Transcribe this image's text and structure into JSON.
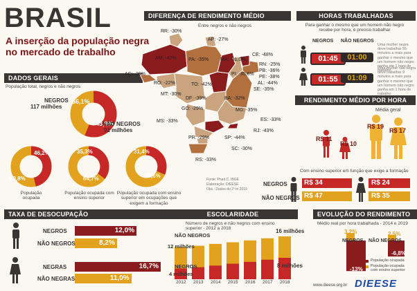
{
  "title": {
    "main": "BRASIL",
    "subtitle_line1": "A inserção da população negra",
    "subtitle_line2": "no mercado de trabalho"
  },
  "colors": {
    "dark_red": "#7a1416",
    "red": "#c62828",
    "orange": "#e8691e",
    "gold": "#e2a21e",
    "dark": "#3a3433",
    "tan": "#b79777",
    "cream": "#fbf8f1"
  },
  "dados_gerais": {
    "header": "DADOS GERAIS",
    "caption": "População total, negros e não negros",
    "negros_label": "NEGROS",
    "negros_pct": "56,1%",
    "negros_count": "117 milhões",
    "nao_negros_label": "NÃO NEGROS",
    "nao_negros_pct": "43,9%",
    "nao_negros_count": "92 milhões",
    "donuts": [
      {
        "inner": "46,2%",
        "outer": "53,8%",
        "value": 0.462,
        "caption": "População ocupada"
      },
      {
        "inner": "35,3%",
        "outer": "64,7%",
        "value": 0.353,
        "caption": "População ocupada com ensino superior"
      },
      {
        "inner": "31,4%",
        "outer": "68,6%",
        "value": 0.314,
        "caption": "População ocupada com ensino superior em ocupações que exigem a formação"
      }
    ],
    "main_value": 0.561
  },
  "mapa": {
    "header": "DIFERENÇA DE RENDIMENTO MÉDIO",
    "caption": "Entre negros e não negros",
    "states": [
      {
        "uf": "RR",
        "value": "-30%"
      },
      {
        "uf": "AP",
        "value": "-27%"
      },
      {
        "uf": "AM",
        "value": "-42%"
      },
      {
        "uf": "PA",
        "value": "-35%"
      },
      {
        "uf": "MA",
        "value": "-31,0%"
      },
      {
        "uf": "CE",
        "value": "-48%"
      },
      {
        "uf": "RN",
        "value": "-25%"
      },
      {
        "uf": "PB",
        "value": "-36%"
      },
      {
        "uf": "PE",
        "value": "-38%"
      },
      {
        "uf": "AL",
        "value": "-44%"
      },
      {
        "uf": "SE",
        "value": "-35%"
      },
      {
        "uf": "PI",
        "value": "-35,6%"
      },
      {
        "uf": "AC",
        "value": "-30%"
      },
      {
        "uf": "RO",
        "value": "-22%"
      },
      {
        "uf": "TO",
        "value": "-42%"
      },
      {
        "uf": "MT",
        "value": "-30%"
      },
      {
        "uf": "DF",
        "value": "-39%"
      },
      {
        "uf": "BA",
        "value": "-32%"
      },
      {
        "uf": "GO",
        "value": "-29%"
      },
      {
        "uf": "MG",
        "value": "-35%"
      },
      {
        "uf": "MS",
        "value": "-33%"
      },
      {
        "uf": "ES",
        "value": "-33%"
      },
      {
        "uf": "RJ",
        "value": "-43%"
      },
      {
        "uf": "SP",
        "value": "-44%"
      },
      {
        "uf": "PR",
        "value": "-29%"
      },
      {
        "uf": "SC",
        "value": "-30%"
      },
      {
        "uf": "RS",
        "value": "-33%"
      }
    ],
    "source": [
      "Fonte: Pnad C. IBGE",
      "Elaboração: DIEESE",
      "Obs.: Dados do 2º tri 2019"
    ]
  },
  "horas": {
    "header": "HORAS TRABALHADAS",
    "caption": "Para ganhar o mesmo que um homem não negro recebe por hora, é preciso trabalhar",
    "negros_label": "NEGROS",
    "nao_negros_label": "NÃO NEGROS",
    "homem_negro": "01:45",
    "homem_nao_negro": "01:00",
    "mulher_negra": "01:55",
    "mulher_nao_negra": "01:09",
    "note1": "Uma mulher negra deve trabalhar 55 minutos a mais para ganhar o mesmo que um homem não negro ganha em 1 hora de trabalho",
    "note2": "Uma mulher não negra deve trabalhar 9 minutos a mais para ganhar o mesmo que um homem não negro ganha em 1 hora de trabalho"
  },
  "rendimento_hora": {
    "header": "RENDIMENTO MÉDIO POR HORA",
    "media_geral": "Média geral",
    "homem_negro": "R$ 11",
    "mulher_negra": "R$ 10",
    "homem_nao_negro": "R$ 19",
    "mulher_nao_negra": "R$ 17",
    "superior_caption": "Com ensino superior em função que exige a formação",
    "negros_label": "NEGROS",
    "nao_negros_label": "NÃO NEGROS",
    "sup_homem_negro": "R$ 34",
    "sup_mulher_negra": "R$ 24",
    "sup_homem_nao_negro": "R$ 47",
    "sup_mulher_nao_negra": "R$ 35"
  },
  "desocupacao": {
    "header": "TAXA DE DESOCUPAÇÃO",
    "rows": [
      {
        "label": "NEGROS",
        "value": "12,0%",
        "num": 12.0
      },
      {
        "label": "NÃO NEGROS",
        "value": "8,2%",
        "num": 8.2
      },
      {
        "label": "NEGRAS",
        "value": "16,7%",
        "num": 16.7
      },
      {
        "label": "NÃO NEGRAS",
        "value": "11,0%",
        "num": 11.0
      }
    ]
  },
  "escolaridade": {
    "header": "ESCOLARIDADE",
    "caption": "Número de negros e não negros com ensino superior - 2012 a 2018",
    "years": [
      "2012",
      "2013",
      "2014",
      "2015",
      "2016",
      "2017",
      "2018"
    ],
    "nao_negros": [
      12,
      12.5,
      13.2,
      13.8,
      14.5,
      15.3,
      16
    ],
    "negros": [
      4,
      4.5,
      5.1,
      5.8,
      6.5,
      7.3,
      8
    ],
    "labels": {
      "nn_label": "NÃO NEGROS",
      "n_label": "NEGROS",
      "nn_start": "12 milhões",
      "n_start": "4 milhões",
      "nn_end": "16 milhões",
      "n_end": "8 milhões"
    }
  },
  "evolucao": {
    "header": "EVOLUÇÃO DO RENDIMENTO",
    "caption": "Médio real por hora trabalhada - 2014 e 2019",
    "negros_label": "NEGROS",
    "nao_negros_label": "NÃO NEGROS",
    "n_ocupada": "-13%",
    "n_superior": "3,2%",
    "nn_ocupada": "-6,8%",
    "nn_superior": "2,5%",
    "values": {
      "n_ocupada": -13,
      "n_superior": 3.2,
      "nn_ocupada": -6.8,
      "nn_superior": 2.5
    },
    "legend": [
      "População ocupada",
      "População ocupada com ensino superior"
    ]
  },
  "footer": {
    "url": "www.dieese.org.br",
    "brand": "DIEESE"
  }
}
